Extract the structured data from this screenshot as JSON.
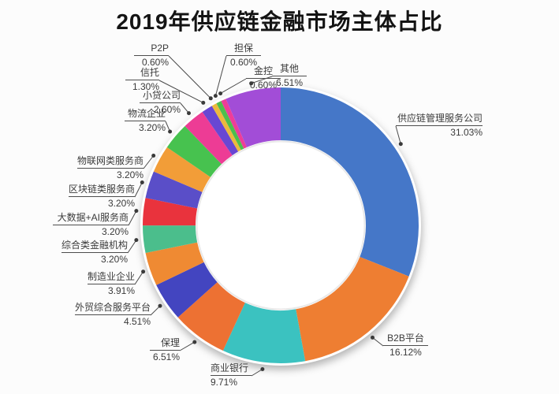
{
  "title": "2019年供应链金融市场主体占比",
  "chart_data": {
    "type": "pie",
    "donut": true,
    "title": "2019年供应链金融市场主体占比",
    "start_angle": "12-oclock",
    "direction": "clockwise",
    "unit": "%",
    "legend": "none",
    "items": [
      {
        "label": "供应链管理服务公司",
        "value": 31.03,
        "display": "31.03%",
        "color": "#4577C8"
      },
      {
        "label": "B2B平台",
        "value": 16.12,
        "display": "16.12%",
        "color": "#EE7E32"
      },
      {
        "label": "商业银行",
        "value": 9.71,
        "display": "9.71%",
        "color": "#3BC2C0"
      },
      {
        "label": "保理",
        "value": 6.51,
        "display": "6.51%",
        "color": "#ED7133"
      },
      {
        "label": "外贸综合服务平台",
        "value": 4.51,
        "display": "4.51%",
        "color": "#4345C0"
      },
      {
        "label": "制造业企业",
        "value": 3.91,
        "display": "3.91%",
        "color": "#EF8A33"
      },
      {
        "label": "综合类金融机构",
        "value": 3.2,
        "display": "3.20%",
        "color": "#4BBE8C"
      },
      {
        "label": "大数据+AI服务商",
        "value": 3.2,
        "display": "3.20%",
        "color": "#E9333D"
      },
      {
        "label": "区块链类服务商",
        "value": 3.2,
        "display": "3.20%",
        "color": "#5A4EC8"
      },
      {
        "label": "物联网类服务商",
        "value": 3.2,
        "display": "3.20%",
        "color": "#F29D38"
      },
      {
        "label": "物流企业",
        "value": 3.2,
        "display": "3.20%",
        "color": "#47C24F"
      },
      {
        "label": "小贷公司",
        "value": 2.6,
        "display": "2.60%",
        "color": "#ED3C95"
      },
      {
        "label": "信托",
        "value": 1.3,
        "display": "1.30%",
        "color": "#6847D3"
      },
      {
        "label": "P2P",
        "value": 0.6,
        "display": "0.60%",
        "color": "#ECB93D"
      },
      {
        "label": "担保",
        "value": 0.6,
        "display": "0.60%",
        "color": "#4DBE4D"
      },
      {
        "label": "金控",
        "value": 0.6,
        "display": "0.60%",
        "color": "#EE3D98"
      },
      {
        "label": "其他",
        "value": 6.51,
        "display": "6.51%",
        "color": "#A24DD7"
      }
    ]
  }
}
